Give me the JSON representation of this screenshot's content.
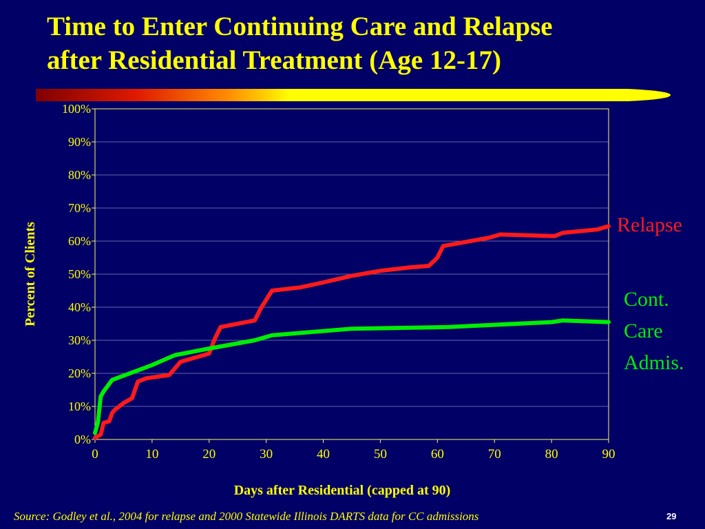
{
  "slide": {
    "title_lines": [
      "Time to Enter Continuing Care and Relapse",
      "after Residential Treatment (Age 12-17)"
    ],
    "source": "Source:  Godley et al., 2004 for relapse and 2000 Statewide Illinois DARTS data  for CC admissions",
    "page_number": "29"
  },
  "colors": {
    "background": "#000066",
    "title": "#ffff00",
    "relapse": "#ff1a1a",
    "cont_care": "#00ee00",
    "grid": "#6666aa",
    "plot_border": "#ffff66"
  },
  "chart_data": {
    "type": "line",
    "xlabel": "Days after Residential (capped at 90)",
    "ylabel": "Percent of Clients",
    "xlim": [
      0,
      90
    ],
    "ylim": [
      0,
      100
    ],
    "x_ticks": [
      0,
      10,
      20,
      30,
      40,
      50,
      60,
      70,
      80,
      90
    ],
    "y_ticks": [
      0,
      10,
      20,
      30,
      40,
      50,
      60,
      70,
      80,
      90,
      100
    ],
    "y_tick_labels": [
      "0%",
      "10%",
      "20%",
      "30%",
      "40%",
      "50%",
      "60%",
      "70%",
      "80%",
      "90%",
      "100%"
    ],
    "grid": "horizontal",
    "series": [
      {
        "name": "Relapse",
        "label_lines": [
          "Relapse"
        ],
        "color": "#ff1a1a",
        "x": [
          0,
          1,
          1.5,
          2.5,
          3,
          3.5,
          5,
          6.5,
          7.5,
          9,
          13,
          15,
          20,
          21,
          22,
          28,
          29,
          31,
          36,
          40,
          45,
          50,
          55,
          58.5,
          60,
          61,
          69,
          71,
          80.5,
          82,
          88,
          90
        ],
        "y": [
          0.5,
          1.5,
          5,
          5.5,
          8,
          9,
          11,
          12.5,
          17.5,
          18.5,
          19.5,
          23.5,
          26,
          30.5,
          34,
          36,
          39.5,
          45,
          46,
          47.5,
          49.5,
          51,
          52,
          52.5,
          55,
          58.5,
          61,
          62,
          61.5,
          62.5,
          63.5,
          64.5
        ]
      },
      {
        "name": "Cont. Care Admis.",
        "label_lines": [
          "Cont.",
          "Care",
          "Admis."
        ],
        "color": "#00ee00",
        "x": [
          0,
          0.5,
          1,
          1.5,
          3,
          10,
          14,
          20,
          28,
          31,
          45,
          62,
          80,
          82,
          90
        ],
        "y": [
          2,
          5,
          13,
          14.5,
          18,
          22.5,
          25.5,
          27.5,
          30,
          31.5,
          33.5,
          34,
          35.5,
          36,
          35.5
        ]
      }
    ]
  }
}
